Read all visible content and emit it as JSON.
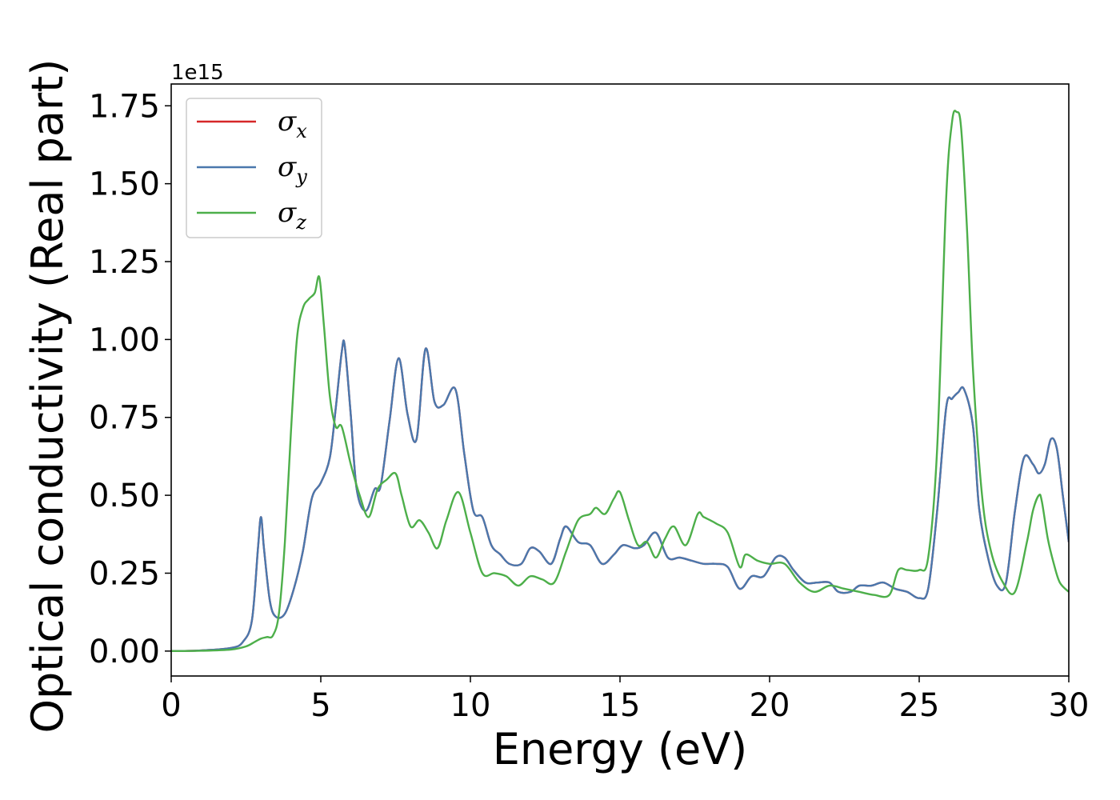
{
  "chart_data": {
    "type": "line",
    "xlabel": "Energy (eV)",
    "ylabel": "Optical conductivity (Real part)",
    "y_offset_label": "1e15",
    "xlim": [
      0,
      30
    ],
    "ylim": [
      -0.08,
      1.82
    ],
    "x_ticks": [
      0,
      5,
      10,
      15,
      20,
      25,
      30
    ],
    "x_tick_labels": [
      "0",
      "5",
      "10",
      "15",
      "20",
      "25",
      "30"
    ],
    "y_ticks": [
      0.0,
      0.25,
      0.5,
      0.75,
      1.0,
      1.25,
      1.5,
      1.75
    ],
    "y_tick_labels": [
      "0.00",
      "0.25",
      "0.50",
      "0.75",
      "1.00",
      "1.25",
      "1.50",
      "1.75"
    ],
    "grid": false,
    "legend_position": "top-left",
    "legend": [
      {
        "symbol": "σ",
        "sub": "x",
        "color": "#d62728"
      },
      {
        "symbol": "σ",
        "sub": "y",
        "color": "#4a78ad"
      },
      {
        "symbol": "σ",
        "sub": "z",
        "color": "#4daf4a"
      }
    ],
    "series": [
      {
        "name": "σx",
        "color": "#d62728",
        "x": [
          0,
          1,
          2,
          2.4,
          2.7,
          2.9,
          3.0,
          3.1,
          3.3,
          3.5,
          3.8,
          4.1,
          4.4,
          4.7,
          5.0,
          5.3,
          5.5,
          5.7,
          5.8,
          6.0,
          6.2,
          6.5,
          6.8,
          7.0,
          7.3,
          7.6,
          7.9,
          8.2,
          8.5,
          8.8,
          9.1,
          9.5,
          9.8,
          10.1,
          10.4,
          10.7,
          11.0,
          11.3,
          11.7,
          12.0,
          12.3,
          12.7,
          13.0,
          13.2,
          13.6,
          14.0,
          14.4,
          14.8,
          15.1,
          15.5,
          15.8,
          16.2,
          16.6,
          17.0,
          17.4,
          17.8,
          18.2,
          18.6,
          19.0,
          19.4,
          19.8,
          20.2,
          20.5,
          20.8,
          21.2,
          21.6,
          22.0,
          22.3,
          22.7,
          23.0,
          23.4,
          23.8,
          24.2,
          24.6,
          25.0,
          25.3,
          25.6,
          25.9,
          26.1,
          26.3,
          26.5,
          26.8,
          27.0,
          27.3,
          27.6,
          27.9,
          28.2,
          28.5,
          28.8,
          29.0,
          29.2,
          29.4,
          29.6,
          29.8,
          30.0
        ],
        "y": [
          0.0,
          0.002,
          0.01,
          0.03,
          0.1,
          0.33,
          0.43,
          0.33,
          0.16,
          0.11,
          0.12,
          0.2,
          0.32,
          0.49,
          0.54,
          0.62,
          0.78,
          0.96,
          0.98,
          0.76,
          0.52,
          0.45,
          0.52,
          0.53,
          0.74,
          0.94,
          0.76,
          0.68,
          0.97,
          0.8,
          0.79,
          0.84,
          0.63,
          0.45,
          0.43,
          0.34,
          0.31,
          0.28,
          0.28,
          0.33,
          0.32,
          0.28,
          0.36,
          0.4,
          0.35,
          0.34,
          0.28,
          0.31,
          0.34,
          0.33,
          0.34,
          0.38,
          0.3,
          0.3,
          0.29,
          0.28,
          0.28,
          0.27,
          0.2,
          0.24,
          0.24,
          0.3,
          0.3,
          0.26,
          0.22,
          0.22,
          0.22,
          0.19,
          0.19,
          0.21,
          0.21,
          0.22,
          0.2,
          0.19,
          0.17,
          0.2,
          0.45,
          0.78,
          0.81,
          0.83,
          0.84,
          0.72,
          0.46,
          0.3,
          0.21,
          0.22,
          0.45,
          0.62,
          0.6,
          0.57,
          0.6,
          0.68,
          0.65,
          0.5,
          0.35
        ]
      },
      {
        "name": "σy",
        "color": "#4a78ad",
        "x": [
          0,
          1,
          2,
          2.4,
          2.7,
          2.9,
          3.0,
          3.1,
          3.3,
          3.5,
          3.8,
          4.1,
          4.4,
          4.7,
          5.0,
          5.3,
          5.5,
          5.7,
          5.8,
          6.0,
          6.2,
          6.5,
          6.8,
          7.0,
          7.3,
          7.6,
          7.9,
          8.2,
          8.5,
          8.8,
          9.1,
          9.5,
          9.8,
          10.1,
          10.4,
          10.7,
          11.0,
          11.3,
          11.7,
          12.0,
          12.3,
          12.7,
          13.0,
          13.2,
          13.6,
          14.0,
          14.4,
          14.8,
          15.1,
          15.5,
          15.8,
          16.2,
          16.6,
          17.0,
          17.4,
          17.8,
          18.2,
          18.6,
          19.0,
          19.4,
          19.8,
          20.2,
          20.5,
          20.8,
          21.2,
          21.6,
          22.0,
          22.3,
          22.7,
          23.0,
          23.4,
          23.8,
          24.2,
          24.6,
          25.0,
          25.3,
          25.6,
          25.9,
          26.1,
          26.3,
          26.5,
          26.8,
          27.0,
          27.3,
          27.6,
          27.9,
          28.2,
          28.5,
          28.8,
          29.0,
          29.2,
          29.4,
          29.6,
          29.8,
          30.0
        ],
        "y": [
          0.0,
          0.002,
          0.01,
          0.03,
          0.1,
          0.33,
          0.43,
          0.33,
          0.16,
          0.11,
          0.12,
          0.2,
          0.32,
          0.49,
          0.54,
          0.62,
          0.78,
          0.96,
          0.98,
          0.76,
          0.52,
          0.45,
          0.52,
          0.53,
          0.74,
          0.94,
          0.76,
          0.68,
          0.97,
          0.8,
          0.79,
          0.84,
          0.63,
          0.45,
          0.43,
          0.34,
          0.31,
          0.28,
          0.28,
          0.33,
          0.32,
          0.28,
          0.36,
          0.4,
          0.35,
          0.34,
          0.28,
          0.31,
          0.34,
          0.33,
          0.34,
          0.38,
          0.3,
          0.3,
          0.29,
          0.28,
          0.28,
          0.27,
          0.2,
          0.24,
          0.24,
          0.3,
          0.3,
          0.26,
          0.22,
          0.22,
          0.22,
          0.19,
          0.19,
          0.21,
          0.21,
          0.22,
          0.2,
          0.19,
          0.17,
          0.2,
          0.45,
          0.78,
          0.81,
          0.83,
          0.84,
          0.72,
          0.46,
          0.3,
          0.21,
          0.22,
          0.45,
          0.62,
          0.6,
          0.57,
          0.6,
          0.68,
          0.65,
          0.5,
          0.35
        ]
      },
      {
        "name": "σz",
        "color": "#4daf4a",
        "x": [
          0,
          1,
          2,
          2.5,
          2.8,
          3.0,
          3.2,
          3.4,
          3.6,
          3.8,
          4.0,
          4.2,
          4.4,
          4.6,
          4.8,
          4.95,
          5.1,
          5.3,
          5.5,
          5.7,
          6.0,
          6.3,
          6.6,
          6.9,
          7.2,
          7.5,
          7.7,
          8.0,
          8.3,
          8.6,
          8.9,
          9.2,
          9.6,
          10.0,
          10.4,
          10.8,
          11.2,
          11.6,
          12.0,
          12.4,
          12.8,
          13.2,
          13.6,
          14.0,
          14.2,
          14.5,
          14.8,
          15.0,
          15.3,
          15.6,
          15.9,
          16.2,
          16.5,
          16.8,
          17.2,
          17.6,
          17.8,
          18.2,
          18.6,
          19.0,
          19.2,
          19.6,
          20.0,
          20.5,
          21.0,
          21.5,
          22.0,
          22.5,
          23.0,
          23.5,
          24.0,
          24.3,
          24.6,
          25.0,
          25.3,
          25.6,
          25.9,
          26.1,
          26.25,
          26.4,
          26.6,
          26.8,
          27.1,
          27.4,
          27.8,
          28.2,
          28.6,
          28.8,
          29.0,
          29.1,
          29.3,
          29.5,
          29.7,
          30.0
        ],
        "y": [
          0.0,
          0.001,
          0.005,
          0.015,
          0.03,
          0.04,
          0.045,
          0.05,
          0.12,
          0.35,
          0.7,
          1.0,
          1.1,
          1.13,
          1.15,
          1.2,
          1.05,
          0.82,
          0.72,
          0.72,
          0.6,
          0.5,
          0.43,
          0.52,
          0.55,
          0.57,
          0.5,
          0.4,
          0.42,
          0.38,
          0.33,
          0.42,
          0.51,
          0.38,
          0.25,
          0.25,
          0.24,
          0.21,
          0.24,
          0.23,
          0.22,
          0.32,
          0.42,
          0.44,
          0.46,
          0.44,
          0.49,
          0.51,
          0.42,
          0.34,
          0.35,
          0.3,
          0.36,
          0.4,
          0.34,
          0.44,
          0.43,
          0.41,
          0.38,
          0.27,
          0.31,
          0.29,
          0.28,
          0.28,
          0.22,
          0.19,
          0.21,
          0.2,
          0.19,
          0.18,
          0.18,
          0.26,
          0.26,
          0.26,
          0.3,
          0.65,
          1.45,
          1.7,
          1.73,
          1.68,
          1.35,
          0.9,
          0.5,
          0.32,
          0.22,
          0.19,
          0.35,
          0.45,
          0.5,
          0.48,
          0.36,
          0.28,
          0.22,
          0.19
        ]
      }
    ]
  }
}
